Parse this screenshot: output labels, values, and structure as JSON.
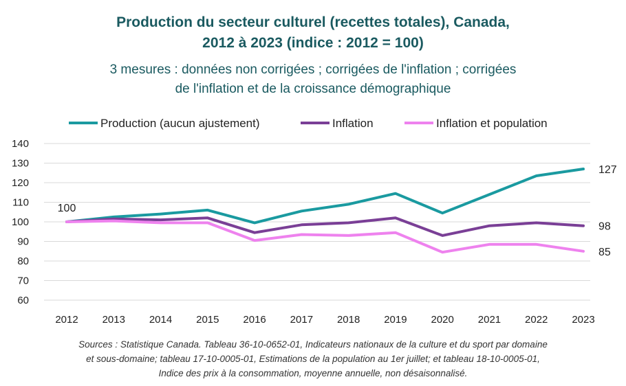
{
  "title_line1": "Production du secteur culturel (recettes totales), Canada,",
  "title_line2": "2012 à 2023 (indice : 2012 = 100)",
  "subtitle_line1": "3 mesures : données non corrigées ; corrigées de l'inflation ; corrigées",
  "subtitle_line2": "de l'inflation et de la croissance démographique",
  "source_line1": "Sources : Statistique Canada. Tableau 36-10-0652-01, Indicateurs nationaux de la culture et du sport par domaine",
  "source_line2": "et sous-domaine; tableau 17-10-0005-01, Estimations de la population au 1er juillet; et tableau 18-10-0005-01,",
  "source_line3": "Indice des prix à la consommation, moyenne annuelle, non désaisonnalisé.",
  "colors": {
    "production": "#1a9aa0",
    "inflation": "#7a3f96",
    "inflation_population": "#ee82ee",
    "grid": "#d9d9d9",
    "text": "#222222"
  },
  "chart_data": {
    "type": "line",
    "categories": [
      "2012",
      "2013",
      "2014",
      "2015",
      "2016",
      "2017",
      "2018",
      "2019",
      "2020",
      "2021",
      "2022",
      "2023"
    ],
    "ylim": [
      60,
      140
    ],
    "yticks": [
      60,
      70,
      80,
      90,
      100,
      110,
      120,
      130,
      140
    ],
    "grid": true,
    "legend_position": "top",
    "series": [
      {
        "name": "Production (aucun ajustement)",
        "color": "#1a9aa0",
        "values": [
          100,
          102.5,
          104,
          106,
          99.5,
          105.5,
          109,
          114.5,
          104.5,
          114,
          123.5,
          127
        ]
      },
      {
        "name": "Inflation",
        "color": "#7a3f96",
        "values": [
          100,
          101.5,
          101,
          102,
          94.5,
          98.5,
          99.5,
          102,
          93,
          98,
          99.5,
          98
        ]
      },
      {
        "name": "Inflation et population",
        "color": "#ee82ee",
        "values": [
          100,
          100.5,
          99.5,
          99.5,
          90.5,
          93.5,
          93,
          94.5,
          84.5,
          88.5,
          88.5,
          85
        ]
      }
    ],
    "annotations": [
      {
        "text": "100",
        "category": "2012",
        "value": 100,
        "anchor": "above"
      },
      {
        "text": "127",
        "category": "2023",
        "value": 127,
        "anchor": "right"
      },
      {
        "text": "98",
        "category": "2023",
        "value": 98,
        "anchor": "right"
      },
      {
        "text": "85",
        "category": "2023",
        "value": 85,
        "anchor": "right"
      }
    ]
  }
}
